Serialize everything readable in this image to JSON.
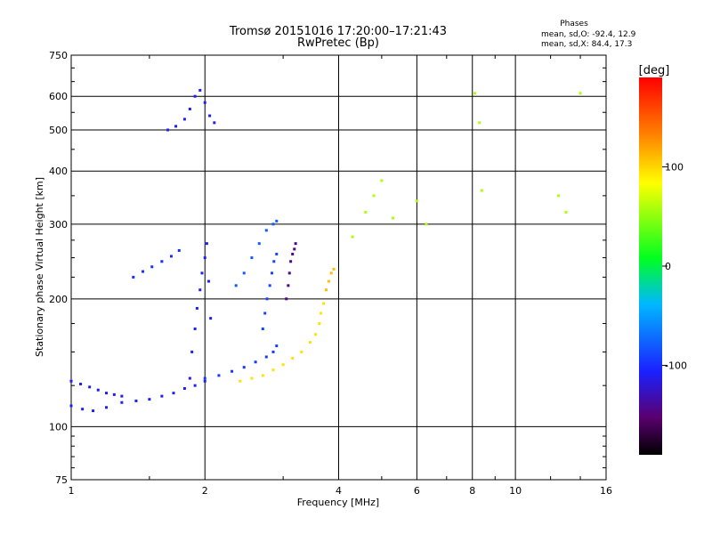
{
  "header": {
    "title_line1": "Tromsø 20151016 17:20:00–17:21:43",
    "title_line2": "RwPretec (Bp)",
    "phase_title": "Phases",
    "phase_o": "mean, sd,O: -92.4, 12.9",
    "phase_x": "mean, sd,X: 84.4, 17.3"
  },
  "colorbar": {
    "label": "[deg]",
    "ticks": [
      100,
      0,
      -100
    ],
    "range": [
      -190,
      190
    ]
  },
  "chart_data": {
    "type": "scatter",
    "title": "Tromsø 20151016 17:20:00–17:21:43",
    "subtitle": "RwPretec (Bp)",
    "xlabel": "Frequency [MHz]",
    "ylabel": "Stationary phase Virtual Height [km]",
    "xscale": "log",
    "yscale": "log",
    "xlim": [
      1,
      16
    ],
    "ylim": [
      75,
      750
    ],
    "grid": true,
    "xticks": [
      1,
      2,
      4,
      6,
      8,
      10,
      16
    ],
    "xtick_labels": [
      "1",
      "2",
      "4",
      "6",
      "8",
      "10",
      "16"
    ],
    "yticks": [
      75,
      100,
      200,
      300,
      400,
      500,
      600,
      750
    ],
    "ytick_labels": [
      "75",
      "100",
      "200",
      "300",
      "400",
      "500",
      "600",
      "750"
    ],
    "color_by": "phase [deg]",
    "series": [
      {
        "x": [
          1.0,
          1.06,
          1.12,
          1.2,
          1.3,
          1.4,
          1.5,
          1.6,
          1.7,
          1.8,
          1.9,
          2.0
        ],
        "y": [
          112,
          110,
          109,
          111,
          114,
          115,
          116,
          118,
          120,
          123,
          125,
          128
        ],
        "phase": -108
      },
      {
        "x": [
          1.0,
          1.05,
          1.1,
          1.15,
          1.2,
          1.25,
          1.3
        ],
        "y": [
          128,
          126,
          124,
          122,
          120,
          119,
          118
        ],
        "phase": -110
      },
      {
        "x": [
          1.85,
          1.87,
          1.9,
          1.92,
          1.95,
          1.97,
          2.0,
          2.02,
          2.04,
          2.06
        ],
        "y": [
          130,
          150,
          170,
          190,
          210,
          230,
          250,
          270,
          220,
          180
        ],
        "phase": -108
      },
      {
        "x": [
          1.65,
          1.72,
          1.8,
          1.85,
          1.9,
          1.95,
          2.0,
          2.05,
          2.1
        ],
        "y": [
          500,
          510,
          530,
          560,
          600,
          620,
          580,
          540,
          520
        ],
        "phase": -110
      },
      {
        "x": [
          2.0,
          2.15,
          2.3,
          2.45,
          2.6,
          2.75,
          2.85,
          2.9
        ],
        "y": [
          130,
          132,
          135,
          138,
          142,
          146,
          150,
          155
        ],
        "phase": -95
      },
      {
        "x": [
          2.7,
          2.73,
          2.76,
          2.8,
          2.83,
          2.86,
          2.9
        ],
        "y": [
          170,
          185,
          200,
          215,
          230,
          245,
          255
        ],
        "phase": -90
      },
      {
        "x": [
          2.35,
          2.45,
          2.55,
          2.65,
          2.75,
          2.85,
          2.9
        ],
        "y": [
          215,
          230,
          250,
          270,
          290,
          300,
          305
        ],
        "phase": -80
      },
      {
        "x": [
          1.38,
          1.45,
          1.52,
          1.6,
          1.68,
          1.75
        ],
        "y": [
          225,
          232,
          238,
          245,
          252,
          260
        ],
        "phase": -100
      },
      {
        "x": [
          2.4,
          2.55,
          2.7,
          2.85,
          3.0,
          3.15,
          3.3,
          3.45,
          3.55,
          3.62,
          3.65,
          3.7
        ],
        "y": [
          128,
          130,
          132,
          136,
          140,
          145,
          150,
          158,
          165,
          175,
          185,
          195
        ],
        "phase": 95
      },
      {
        "x": [
          3.05,
          3.08,
          3.1,
          3.12,
          3.15,
          3.18,
          3.2
        ],
        "y": [
          200,
          215,
          230,
          245,
          255,
          262,
          270
        ],
        "phase": -145
      },
      {
        "x": [
          3.75,
          3.8,
          3.85,
          3.9
        ],
        "y": [
          210,
          220,
          230,
          235
        ],
        "phase": 110
      },
      {
        "x": [
          4.3,
          4.6,
          4.8,
          5.0,
          5.3,
          6.0,
          6.3,
          8.1,
          8.3,
          8.4,
          12.5,
          13.0,
          14.0
        ],
        "y": [
          280,
          320,
          350,
          380,
          310,
          340,
          300,
          610,
          520,
          360,
          350,
          320,
          610
        ],
        "phase": 60
      }
    ]
  }
}
